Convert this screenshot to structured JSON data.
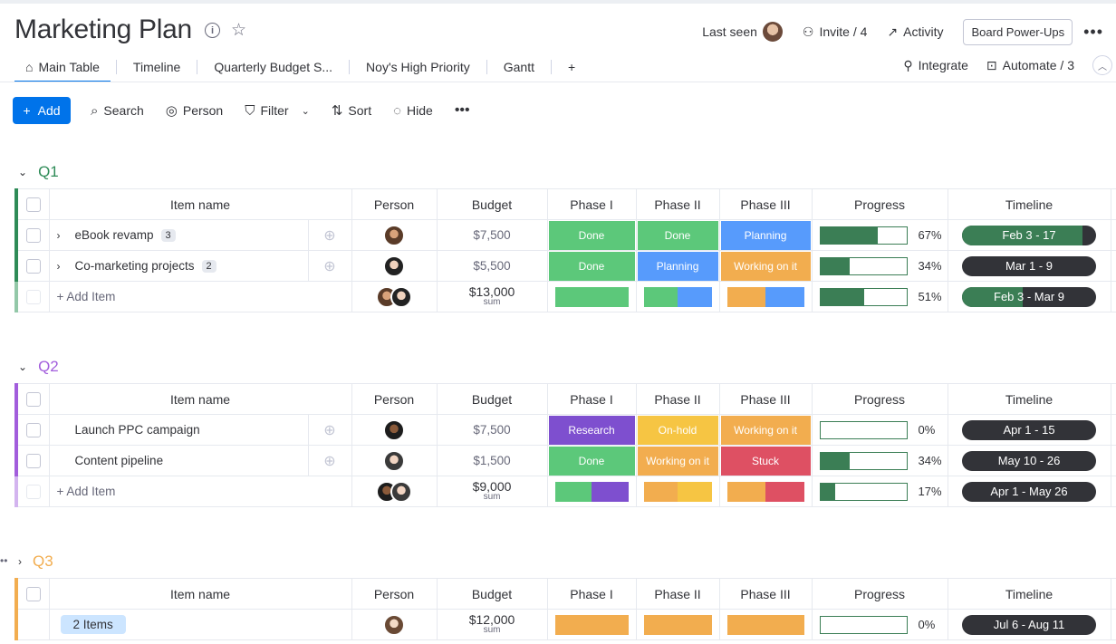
{
  "board": {
    "title": "Marketing Plan"
  },
  "top_actions": {
    "last_seen": "Last seen",
    "invite": "Invite / 4",
    "activity": "Activity",
    "power_ups": "Board Power-Ups"
  },
  "tabs": [
    "Main Table",
    "Timeline",
    "Quarterly Budget S...",
    "Noy's High Priority",
    "Gantt"
  ],
  "tabs_right": {
    "integrate": "Integrate",
    "automate": "Automate / 3"
  },
  "toolbar": {
    "add": "Add",
    "search": "Search",
    "person": "Person",
    "filter": "Filter",
    "sort": "Sort",
    "hide": "Hide"
  },
  "columns": [
    "Item name",
    "Person",
    "Budget",
    "Phase I",
    "Phase II",
    "Phase III",
    "Progress",
    "Timeline"
  ],
  "colors": {
    "done": "#5cc87a",
    "planning": "#579bfc",
    "working": "#f2ad4f",
    "research": "#7e4fcf",
    "onhold": "#f6c543",
    "stuck": "#de5063",
    "q1": "#2e8b57",
    "q2": "#a25ddc",
    "q3": "#f2ad4f"
  },
  "groups": [
    {
      "name": "Q1",
      "items": [
        {
          "name": "eBook revamp",
          "count": "3",
          "budget": "$7,500",
          "p1": "Done",
          "p2": "Done",
          "p3": "Planning",
          "progress": 0.67,
          "progress_label": "67%",
          "timeline": "Feb 3 - 17",
          "timeline_done": 0.9
        },
        {
          "name": "Co-marketing projects",
          "count": "2",
          "budget": "$5,500",
          "p1": "Done",
          "p2": "Planning",
          "p3": "Working on it",
          "progress": 0.34,
          "progress_label": "34%",
          "timeline": "Mar 1 - 9",
          "timeline_done": 0
        }
      ],
      "footer": {
        "add_label": "+ Add Item",
        "sum": "$13,000",
        "sum_label": "sum",
        "progress": 0.51,
        "progress_label": "51%",
        "timeline": "Feb 3 - Mar 9",
        "timeline_done": 0.45
      }
    },
    {
      "name": "Q2",
      "items": [
        {
          "name": "Launch PPC campaign",
          "budget": "$7,500",
          "p1": "Research",
          "p2": "On-hold",
          "p3": "Working on it",
          "progress": 0,
          "progress_label": "0%",
          "timeline": "Apr 1 - 15",
          "timeline_done": 0
        },
        {
          "name": "Content pipeline",
          "budget": "$1,500",
          "p1": "Done",
          "p2": "Working on it",
          "p3": "Stuck",
          "progress": 0.34,
          "progress_label": "34%",
          "timeline": "May 10 - 26",
          "timeline_done": 0
        }
      ],
      "footer": {
        "add_label": "+ Add Item",
        "sum": "$9,000",
        "sum_label": "sum",
        "progress": 0.17,
        "progress_label": "17%",
        "timeline": "Apr 1 - May 26",
        "timeline_done": 0
      }
    },
    {
      "name": "Q3",
      "summary": {
        "items_label": "2 Items",
        "sum": "$12,000",
        "sum_label": "sum",
        "progress": 0,
        "progress_label": "0%",
        "timeline": "Jul 6 - Aug 11"
      }
    }
  ]
}
